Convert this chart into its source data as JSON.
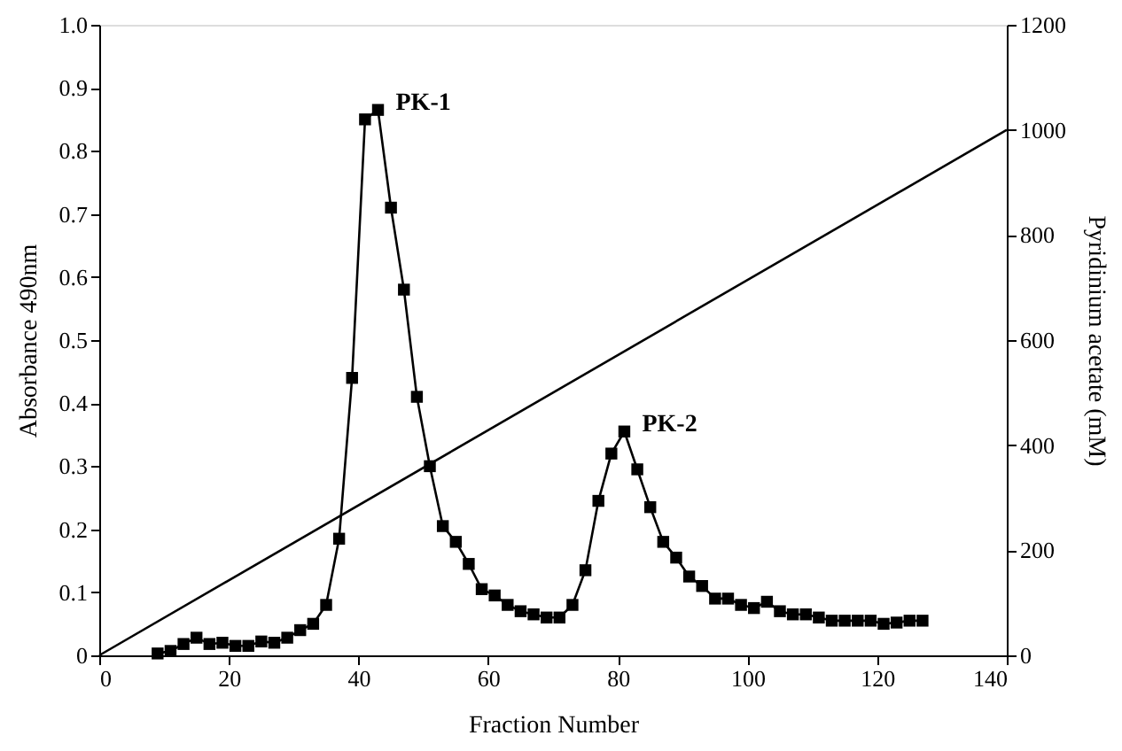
{
  "chart_data": {
    "type": "line",
    "xlabel": "Fraction Number",
    "ylabel": "Absorbance 490nm",
    "y2label": "Pyridinium acetate (mM)",
    "xlim": [
      0,
      140
    ],
    "xticks": [
      0,
      20,
      40,
      60,
      80,
      100,
      120,
      140
    ],
    "ylim": [
      0,
      1.0
    ],
    "yticks": [
      0,
      {
        "value": 0.1,
        "label": "0.1"
      },
      {
        "value": 0.2,
        "label": "0.2"
      },
      {
        "value": 0.3,
        "label": "0.3"
      },
      {
        "value": 0.4,
        "label": "0.4"
      },
      {
        "value": 0.5,
        "label": "0.5"
      },
      {
        "value": 0.6,
        "label": "0.6"
      },
      {
        "value": 0.7,
        "label": "0.7"
      },
      {
        "value": 0.8,
        "label": "0.8"
      },
      {
        "value": 0.9,
        "label": "0.9"
      },
      {
        "value": 1.0,
        "label": "1.0"
      }
    ],
    "y2lim": [
      0,
      1200
    ],
    "y2ticks": [
      0,
      200,
      400,
      600,
      800,
      1000,
      1200
    ],
    "grid": false,
    "series": [
      {
        "color": "#000000",
        "marker": "square",
        "x": [
          9,
          11,
          13,
          15,
          17,
          19,
          21,
          23,
          25,
          27,
          29,
          31,
          33,
          35,
          37,
          39,
          41,
          43,
          45,
          47,
          49,
          51,
          53,
          55,
          57,
          59,
          61,
          63,
          65,
          67,
          69,
          71,
          73,
          75,
          77,
          79,
          81,
          83,
          85,
          87,
          89,
          91,
          93,
          95,
          97,
          99,
          101,
          103,
          105,
          107,
          109,
          111,
          113,
          115,
          117,
          119,
          121,
          123,
          125,
          127
        ],
        "values": [
          0.003,
          0.007,
          0.018,
          0.028,
          0.018,
          0.02,
          0.015,
          0.015,
          0.022,
          0.02,
          0.028,
          0.04,
          0.05,
          0.08,
          0.185,
          0.44,
          0.85,
          0.865,
          0.71,
          0.58,
          0.41,
          0.3,
          0.205,
          0.18,
          0.145,
          0.105,
          0.095,
          0.08,
          0.07,
          0.065,
          0.06,
          0.06,
          0.08,
          0.135,
          0.245,
          0.32,
          0.355,
          0.295,
          0.235,
          0.18,
          0.155,
          0.125,
          0.11,
          0.09,
          0.09,
          0.08,
          0.075,
          0.085,
          0.07,
          0.065,
          0.065,
          0.06,
          0.055,
          0.055,
          0.055,
          0.055,
          0.05,
          0.052,
          0.055,
          0.055
        ]
      },
      {
        "color": "#000000",
        "marker": "none",
        "axis": "y2",
        "x": [
          0,
          140
        ],
        "values": [
          0,
          1000
        ]
      }
    ],
    "annotations": [
      {
        "text": "PK-1",
        "x": 43,
        "y": 0.865
      },
      {
        "text": "PK-2",
        "x": 81,
        "y": 0.355
      }
    ]
  }
}
